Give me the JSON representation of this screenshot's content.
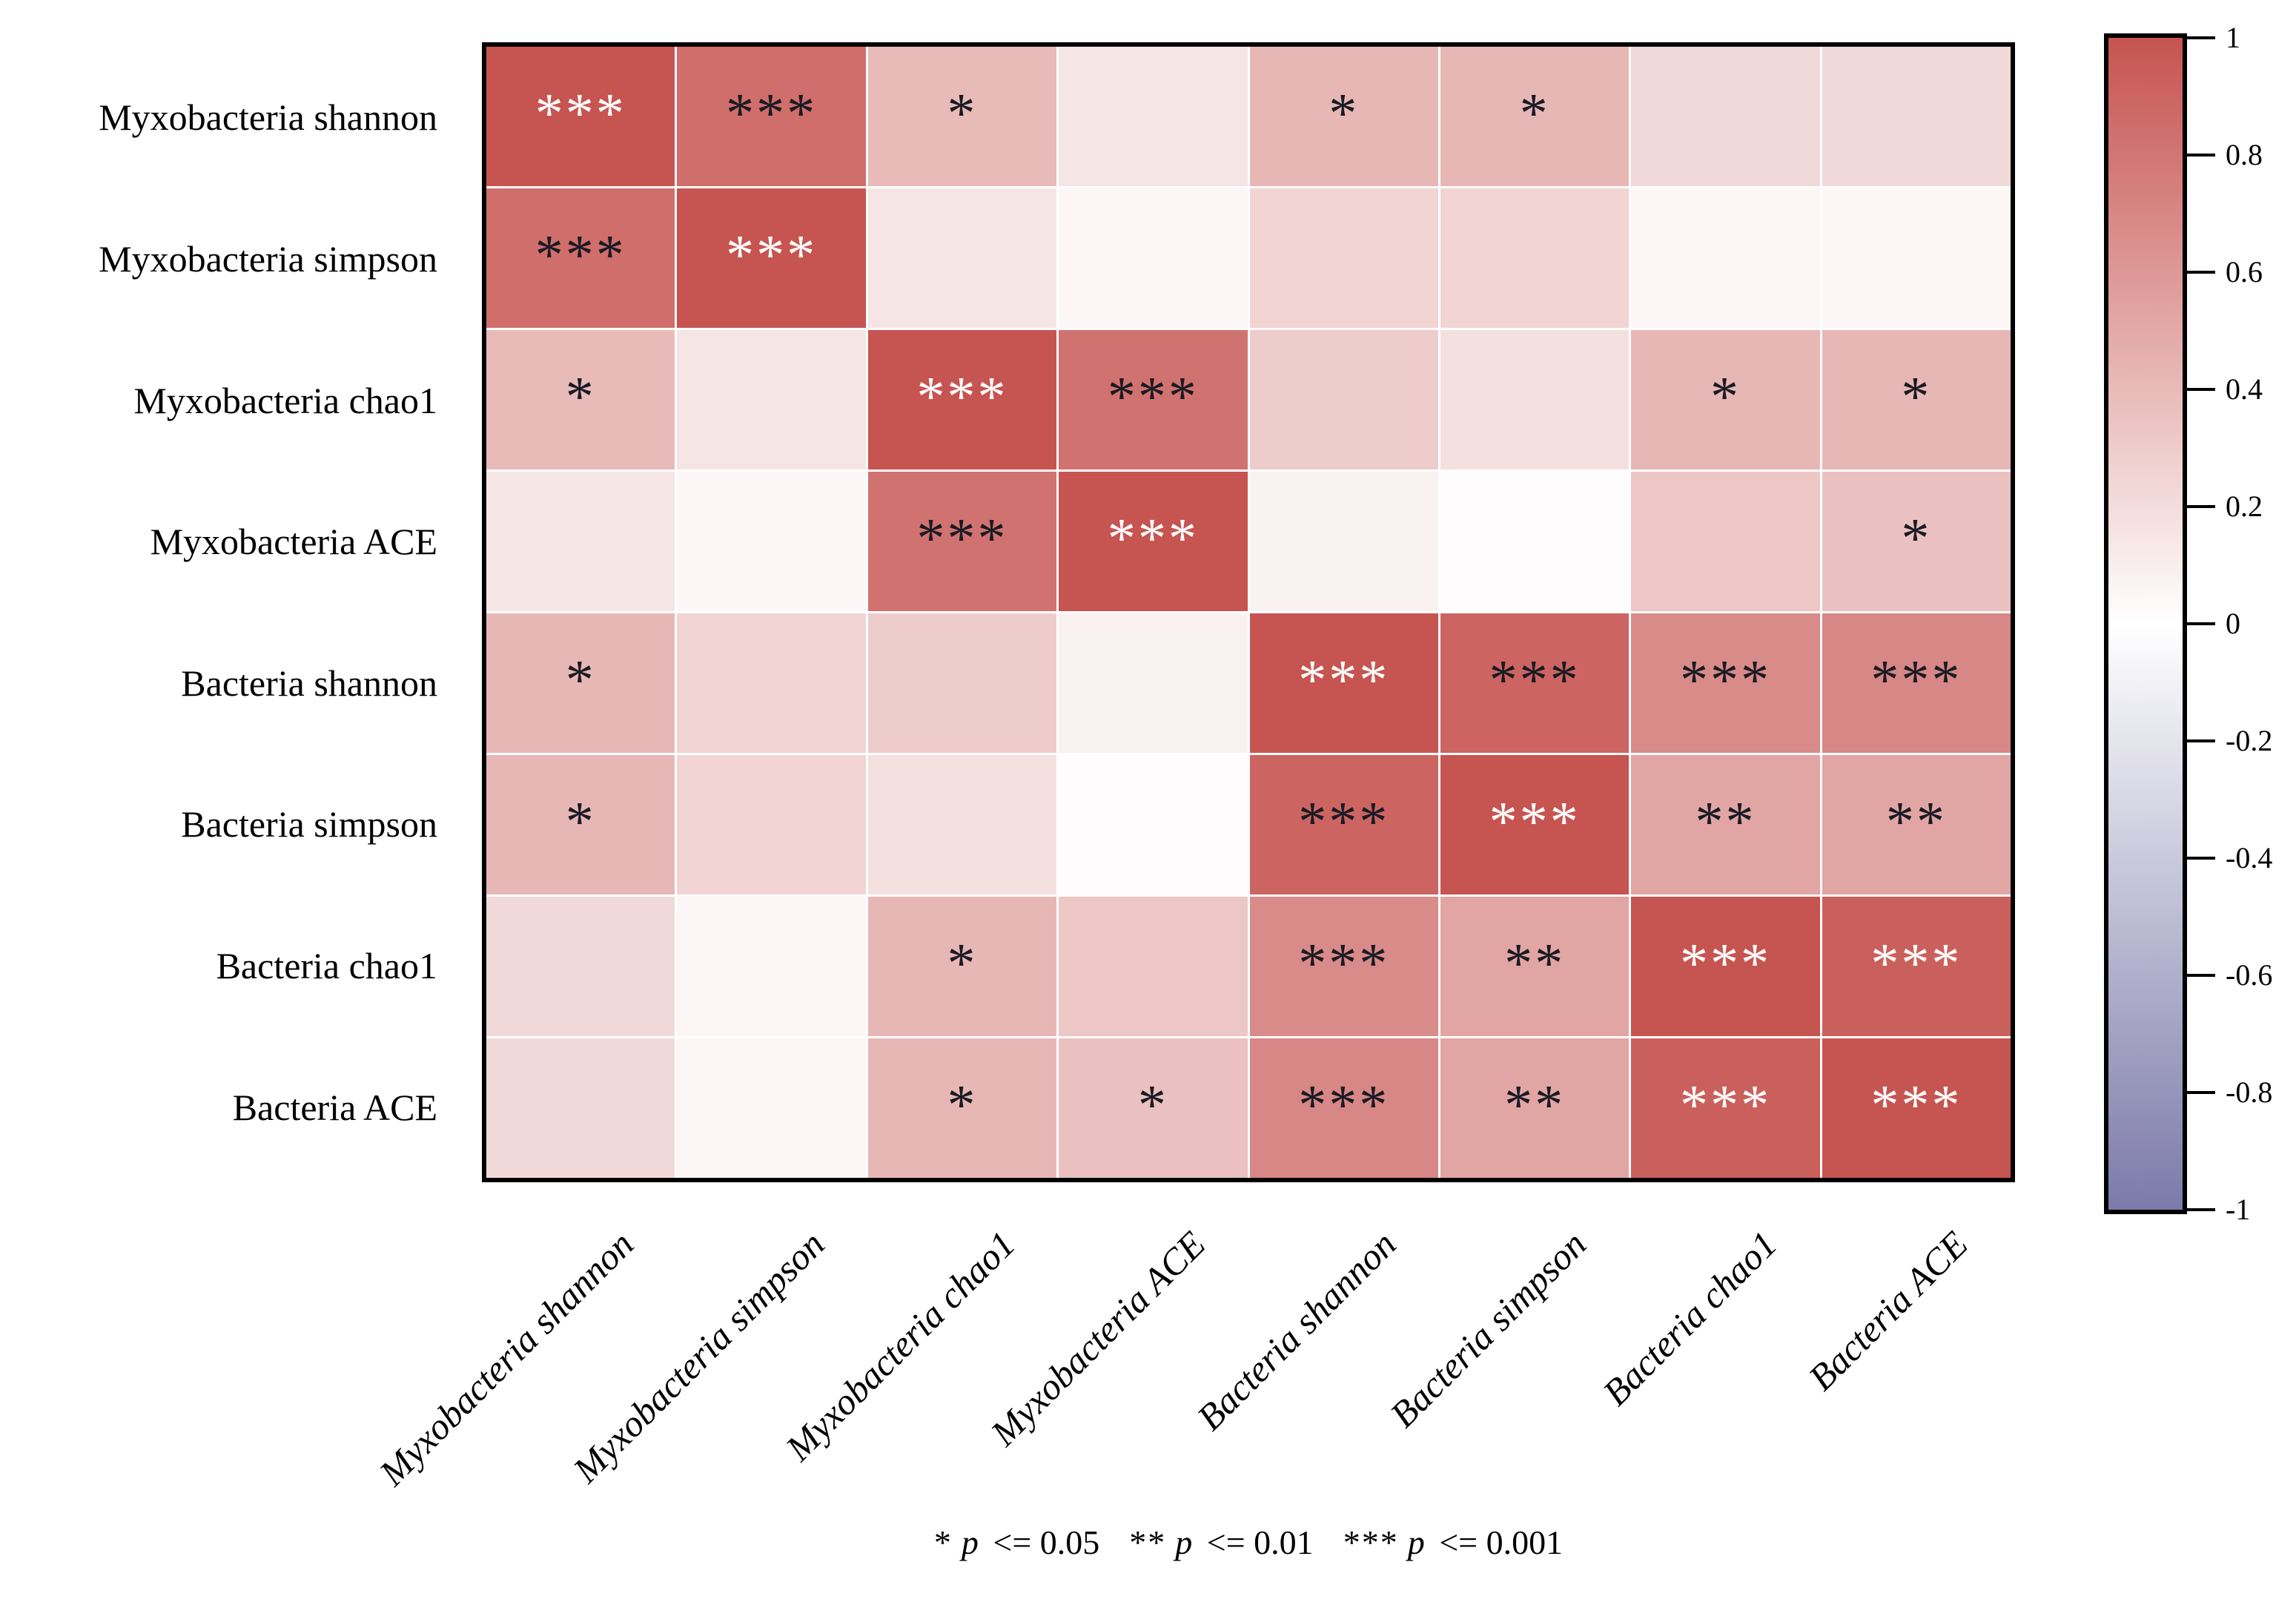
{
  "figure": {
    "background": "#ffffff",
    "caption": {
      "segments": [
        {
          "stars": "*",
          "p": "p",
          "cond": " <= 0.05"
        },
        {
          "stars": "**",
          "p": "p",
          "cond": " <= 0.01"
        },
        {
          "stars": "***",
          "p": "p",
          "cond": " <= 0.001"
        }
      ]
    }
  },
  "chart_data": {
    "type": "heatmap",
    "title": "",
    "rows": [
      "Myxobacteria shannon",
      "Myxobacteria simpson",
      "Myxobacteria chao1",
      "Myxobacteria ACE",
      "Bacteria shannon",
      "Bacteria simpson",
      "Bacteria chao1",
      "Bacteria ACE"
    ],
    "cols": [
      "Myxobacteria shannon",
      "Myxobacteria simpson",
      "Myxobacteria chao1",
      "Myxobacteria ACE",
      "Bacteria shannon",
      "Bacteria simpson",
      "Bacteria chao1",
      "Bacteria ACE"
    ],
    "values": [
      [
        1.0,
        0.85,
        0.4,
        0.15,
        0.42,
        0.42,
        0.22,
        0.22
      ],
      [
        0.85,
        1.0,
        0.15,
        0.05,
        0.25,
        0.25,
        0.05,
        0.05
      ],
      [
        0.4,
        0.15,
        1.0,
        0.82,
        0.3,
        0.18,
        0.42,
        0.42
      ],
      [
        0.15,
        0.05,
        0.82,
        1.0,
        0.08,
        0.02,
        0.33,
        0.36
      ],
      [
        0.42,
        0.25,
        0.3,
        0.08,
        1.0,
        0.9,
        0.68,
        0.7
      ],
      [
        0.42,
        0.25,
        0.18,
        0.02,
        0.9,
        1.0,
        0.52,
        0.52
      ],
      [
        0.22,
        0.05,
        0.42,
        0.33,
        0.68,
        0.52,
        1.0,
        0.93
      ],
      [
        0.22,
        0.05,
        0.42,
        0.36,
        0.7,
        0.52,
        0.93,
        1.0
      ]
    ],
    "significance": [
      [
        "***",
        "***",
        "*",
        "",
        "*",
        "*",
        "",
        ""
      ],
      [
        "***",
        "***",
        "",
        "",
        "",
        "",
        "",
        ""
      ],
      [
        "*",
        "",
        "***",
        "***",
        "",
        "",
        "*",
        "*"
      ],
      [
        "",
        "",
        "***",
        "***",
        "",
        "",
        "",
        "*"
      ],
      [
        "*",
        "",
        "",
        "",
        "***",
        "***",
        "***",
        "***"
      ],
      [
        "*",
        "",
        "",
        "",
        "***",
        "***",
        "**",
        "**"
      ],
      [
        "",
        "",
        "*",
        "",
        "***",
        "**",
        "***",
        "***"
      ],
      [
        "",
        "",
        "*",
        "*",
        "***",
        "**",
        "***",
        "***"
      ]
    ],
    "sig_colors": [
      [
        "w",
        "b",
        "b",
        "",
        "b",
        "b",
        "",
        ""
      ],
      [
        "b",
        "w",
        "",
        "",
        "",
        "",
        "",
        ""
      ],
      [
        "b",
        "",
        "w",
        "b",
        "",
        "",
        "b",
        "b"
      ],
      [
        "",
        "",
        "b",
        "w",
        "",
        "",
        "",
        "b"
      ],
      [
        "b",
        "",
        "",
        "",
        "w",
        "b",
        "b",
        "b"
      ],
      [
        "b",
        "",
        "",
        "",
        "b",
        "w",
        "b",
        "b"
      ],
      [
        "",
        "",
        "b",
        "",
        "b",
        "b",
        "w",
        "w"
      ],
      [
        "",
        "",
        "b",
        "b",
        "b",
        "b",
        "w",
        "w"
      ]
    ],
    "star_color_white": "#ffffff",
    "star_color_black": "#1a1a24",
    "gridline_color": "#ffffff",
    "border_color": "#000000",
    "colorbar": {
      "range": [
        -1,
        1
      ],
      "tick_labels": [
        "1",
        "0.8",
        "0.6",
        "0.4",
        "0.2",
        "0",
        "-0.2",
        "-0.4",
        "-0.6",
        "-0.8",
        "-1"
      ],
      "tick_values": [
        1,
        0.8,
        0.6,
        0.4,
        0.2,
        0,
        -0.2,
        -0.4,
        -0.6,
        -0.8,
        -1
      ],
      "max_color": "#c65450",
      "zero_color": "#ffffff",
      "min_color": "#7c7aa9",
      "position": "right"
    },
    "caption_text": "* p <= 0.05  ** p <= 0.01  *** p <= 0.001",
    "x_tick_rotation_deg": 45,
    "grid": false,
    "legend_position": "bottom"
  }
}
